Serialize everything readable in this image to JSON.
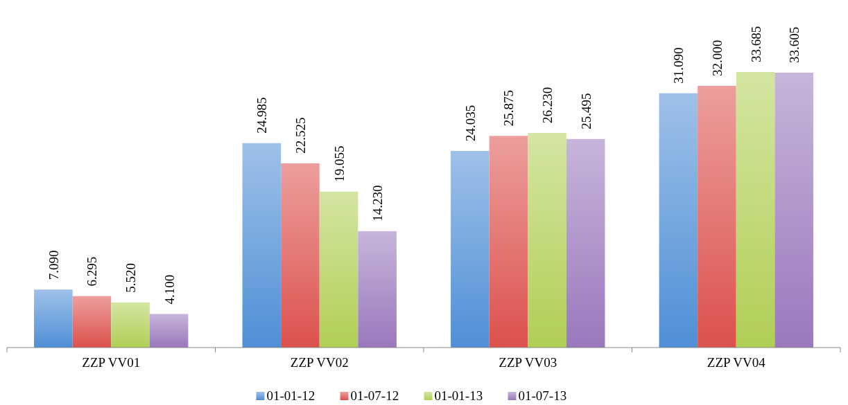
{
  "chart_data": {
    "type": "bar",
    "categories": [
      "ZZP VV01",
      "ZZP VV02",
      "ZZP VV03",
      "ZZP VV04"
    ],
    "series": [
      {
        "name": "01-01-12",
        "color": "#4f8fd6",
        "values": [
          7090,
          24985,
          24035,
          31090
        ],
        "value_labels": [
          "7.090",
          "24.985",
          "24.035",
          "31.090"
        ]
      },
      {
        "name": "01-07-12",
        "color": "#dc514c",
        "values": [
          6295,
          22525,
          25875,
          32000
        ],
        "value_labels": [
          "6.295",
          "22.525",
          "25.875",
          "32.000"
        ]
      },
      {
        "name": "01-01-13",
        "color": "#b0cf55",
        "values": [
          5520,
          19055,
          26230,
          33685
        ],
        "value_labels": [
          "5.520",
          "19.055",
          "26.230",
          "33.685"
        ]
      },
      {
        "name": "01-07-13",
        "color": "#9a78bd",
        "values": [
          4100,
          14230,
          25495,
          33605
        ],
        "value_labels": [
          "4.100",
          "14.230",
          "25.495",
          "33.605"
        ]
      }
    ],
    "legend": "bottom"
  }
}
